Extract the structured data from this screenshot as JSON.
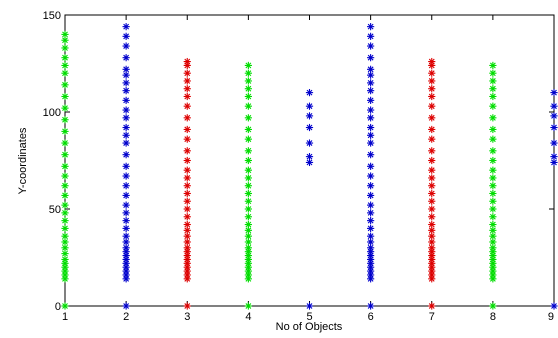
{
  "chart_data": {
    "type": "scatter",
    "title": "",
    "xlabel": "No of Objects",
    "ylabel": "Y-coordinates",
    "xlim": [
      1,
      9
    ],
    "ylim": [
      0,
      150
    ],
    "x_ticks": [
      1,
      2,
      3,
      4,
      5,
      6,
      7,
      8,
      9
    ],
    "y_ticks": [
      0,
      50,
      100,
      150
    ],
    "grid": false,
    "marker": "asterisk",
    "colors": {
      "green": "#00dd00",
      "blue": "#0000cc",
      "red": "#dd0000"
    },
    "series": [
      {
        "x": 1,
        "color": "green",
        "y_values": [
          0,
          14,
          16,
          18,
          20,
          22,
          24,
          27,
          30,
          33,
          36,
          40,
          44,
          48,
          52,
          57,
          62,
          67,
          72,
          78,
          84,
          90,
          96,
          102,
          108,
          114,
          120,
          124,
          128,
          133,
          137,
          140
        ]
      },
      {
        "x": 2,
        "color": "blue",
        "y_values": [
          0,
          14,
          16,
          18,
          20,
          22,
          24,
          26,
          28,
          30,
          33,
          36,
          40,
          44,
          48,
          52,
          57,
          62,
          67,
          72,
          78,
          84,
          88,
          92,
          97,
          101,
          106,
          111,
          115,
          119,
          122,
          128,
          134,
          139,
          144
        ]
      },
      {
        "x": 3,
        "color": "red",
        "y_values": [
          0,
          14,
          16,
          18,
          20,
          22,
          24,
          26,
          28,
          30,
          33,
          36,
          39,
          42,
          46,
          50,
          54,
          58,
          62,
          66,
          70,
          75,
          80,
          86,
          91,
          97,
          103,
          108,
          112,
          116,
          120,
          124,
          126
        ]
      },
      {
        "x": 4,
        "color": "green",
        "y_values": [
          0,
          14,
          16,
          18,
          20,
          22,
          24,
          26,
          28,
          30,
          33,
          36,
          39,
          42,
          46,
          50,
          54,
          58,
          62,
          66,
          70,
          75,
          80,
          86,
          91,
          97,
          103,
          108,
          112,
          116,
          120,
          124
        ]
      },
      {
        "x": 5,
        "color": "blue",
        "y_values": [
          0,
          74,
          77,
          84,
          92,
          98,
          103,
          110
        ]
      },
      {
        "x": 6,
        "color": "blue",
        "y_values": [
          0,
          14,
          16,
          18,
          20,
          22,
          24,
          26,
          28,
          30,
          33,
          36,
          40,
          44,
          48,
          52,
          57,
          62,
          67,
          72,
          78,
          84,
          88,
          92,
          97,
          101,
          106,
          111,
          115,
          119,
          122,
          128,
          134,
          139,
          144
        ]
      },
      {
        "x": 7,
        "color": "red",
        "y_values": [
          0,
          14,
          16,
          18,
          20,
          22,
          24,
          26,
          28,
          30,
          33,
          36,
          39,
          42,
          46,
          50,
          54,
          58,
          62,
          66,
          70,
          75,
          80,
          86,
          91,
          97,
          103,
          108,
          112,
          116,
          120,
          124,
          126
        ]
      },
      {
        "x": 8,
        "color": "green",
        "y_values": [
          0,
          14,
          16,
          18,
          20,
          22,
          24,
          26,
          28,
          30,
          33,
          36,
          39,
          42,
          46,
          50,
          54,
          58,
          62,
          66,
          70,
          75,
          80,
          86,
          91,
          97,
          103,
          108,
          112,
          116,
          120,
          124
        ]
      },
      {
        "x": 9,
        "color": "blue",
        "y_values": [
          0,
          74,
          77,
          84,
          92,
          98,
          103,
          110
        ]
      }
    ]
  }
}
